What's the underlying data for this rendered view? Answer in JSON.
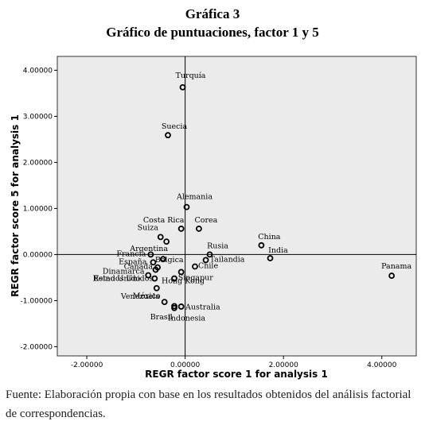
{
  "figure": {
    "title": "Gráfica 3",
    "subtitle": "Gráfico de puntuaciones, factor 1 y 5",
    "caption": "Fuente: Elaboración propia con base en los resultados obtenidos del análisis factorial de correspondencias."
  },
  "chart_data": {
    "type": "scatter",
    "xlabel": "REGR factor score   1 for analysis 1",
    "ylabel": "REGR factor score   5 for analysis 1",
    "xlim": [
      -2.6,
      4.7
    ],
    "ylim": [
      -2.2,
      4.3
    ],
    "xticks": [
      -2,
      0,
      2,
      4
    ],
    "xtick_labels": [
      "-2.00000",
      "0.00000",
      "2.00000",
      "4.00000"
    ],
    "yticks": [
      4,
      3,
      2,
      1,
      0,
      -1,
      -2
    ],
    "ytick_labels": [
      "4.00000",
      "3.00000",
      "2.00000",
      "1.00000",
      "0.00000",
      "-1.00000",
      "-2.00000"
    ],
    "reference_lines": {
      "x": 0,
      "y": 0
    },
    "grid": false,
    "background": "#ebebeb",
    "marker_color": "#000000",
    "points": [
      {
        "label": "Turquía",
        "x": -0.05,
        "y": 3.63
      },
      {
        "label": "Suecia",
        "x": -0.35,
        "y": 2.59
      },
      {
        "label": "Alemania",
        "x": 0.03,
        "y": 1.03
      },
      {
        "label": "Costa Rica",
        "x": -0.08,
        "y": 0.56
      },
      {
        "label": "Corea",
        "x": 0.28,
        "y": 0.56
      },
      {
        "label": "Suiza",
        "x": -0.5,
        "y": 0.38
      },
      {
        "label": "Argentina",
        "x": -0.38,
        "y": 0.28
      },
      {
        "label": "China",
        "x": 1.55,
        "y": 0.2
      },
      {
        "label": "India",
        "x": 1.73,
        "y": -0.08
      },
      {
        "label": "Panama",
        "x": 4.2,
        "y": -0.46
      },
      {
        "label": "Rusia",
        "x": 0.5,
        "y": 0.0
      },
      {
        "label": "Tailandia",
        "x": 0.42,
        "y": -0.12
      },
      {
        "label": "Chile",
        "x": 0.2,
        "y": -0.26
      },
      {
        "label": "Francia",
        "x": -0.7,
        "y": 0.0
      },
      {
        "label": "Bélgica",
        "x": -0.45,
        "y": -0.1
      },
      {
        "label": "España",
        "x": -0.65,
        "y": -0.17
      },
      {
        "label": "Canadá",
        "x": -0.56,
        "y": -0.28
      },
      {
        "label": "Dinamarca",
        "x": -0.6,
        "y": -0.33
      },
      {
        "label": "Reino Unido",
        "x": -0.75,
        "y": -0.45
      },
      {
        "label": "Estados Unidos",
        "x": -0.62,
        "y": -0.52
      },
      {
        "label": "Hong Kong",
        "x": -0.22,
        "y": -0.52
      },
      {
        "label": "Singapur",
        "x": -0.08,
        "y": -0.38
      },
      {
        "label": "México",
        "x": -0.58,
        "y": -0.73
      },
      {
        "label": "Venezuela",
        "x": -0.42,
        "y": -1.03
      },
      {
        "label": "Australia",
        "x": -0.22,
        "y": -1.12
      },
      {
        "label": "Brasil",
        "x": -0.08,
        "y": -1.13
      },
      {
        "label": "Indonesia",
        "x": -0.22,
        "y": -1.16
      }
    ]
  }
}
